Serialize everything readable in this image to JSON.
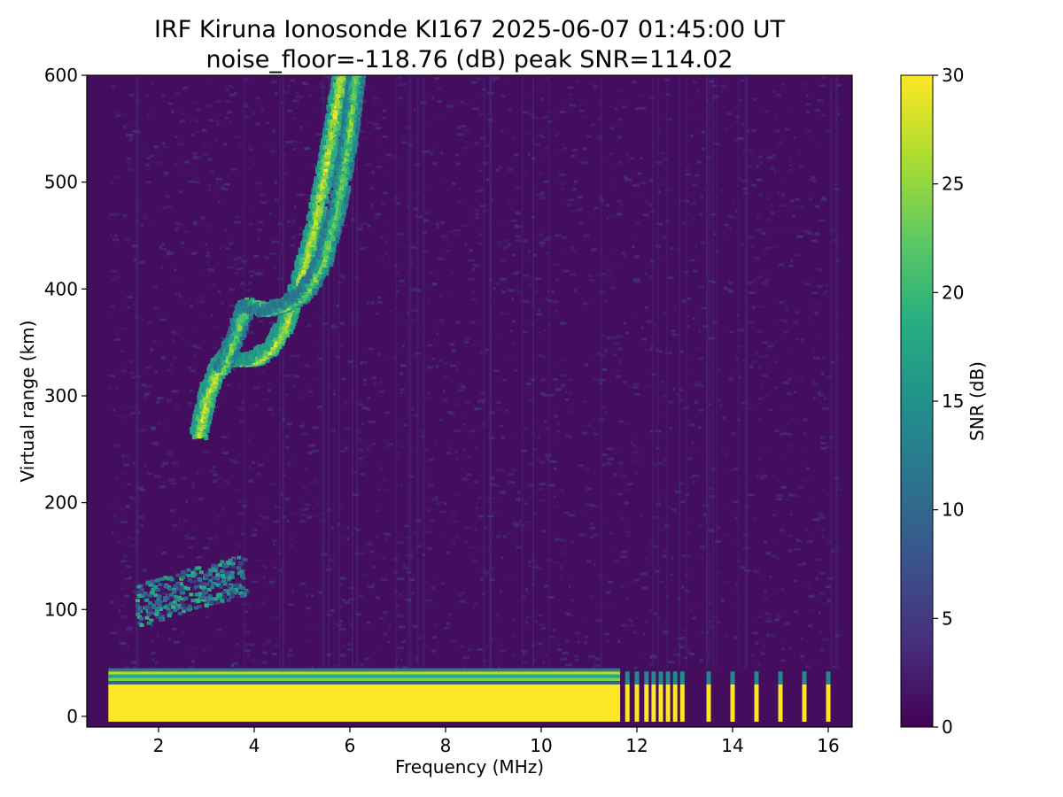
{
  "figure": {
    "title_line1": "IRF Kiruna Ionosonde KI167 2025-06-07 01:45:00  UT",
    "title_line2": "noise_floor=-118.76 (dB) peak SNR=114.02"
  },
  "chart_data": {
    "type": "heatmap",
    "title": "IRF Kiruna Ionosonde KI167 2025-06-07 01:45:00  UT",
    "subtitle": "noise_floor=-118.76 (dB) peak SNR=114.02",
    "xlabel": "Frequency (MHz)",
    "ylabel": "Virtual range (km)",
    "xlim": [
      0.5,
      16.5
    ],
    "ylim": [
      -10,
      600
    ],
    "xticks": [
      2,
      4,
      6,
      8,
      10,
      12,
      14,
      16
    ],
    "yticks": [
      0,
      100,
      200,
      300,
      400,
      500,
      600
    ],
    "colorbar": {
      "label": "SNR (dB)",
      "range": [
        0,
        30
      ],
      "ticks": [
        0,
        5,
        10,
        15,
        20,
        25,
        30
      ],
      "colormap": "viridis",
      "colors": [
        "#440154",
        "#472d7b",
        "#3b528b",
        "#2c728e",
        "#21918c",
        "#28ae80",
        "#5ec962",
        "#addc30",
        "#fde725"
      ]
    },
    "data_frequency_range_mhz": [
      0.95,
      16.2
    ],
    "noise_snr_db": 1,
    "features": [
      {
        "name": "ground-clutter band",
        "freq_mhz": [
          0.95,
          11.65
        ],
        "range_km": [
          -5,
          45
        ],
        "snr_db": 30
      },
      {
        "name": "pulsed frequencies above 11.7 MHz",
        "freq_mhz": [
          11.8,
          12.0,
          12.2,
          12.35,
          12.5,
          12.65,
          12.8,
          12.95,
          13.5,
          14.0,
          14.5,
          15.0,
          15.5,
          16.0
        ],
        "range_km": [
          -5,
          30
        ],
        "snr_db": 30
      },
      {
        "name": "E-region echo",
        "freq_mhz": [
          1.5,
          3.8
        ],
        "range_km": [
          95,
          170
        ],
        "snr_db": 16
      },
      {
        "name": "F-region trace O",
        "points": [
          [
            2.8,
            260
          ],
          [
            3.0,
            300
          ],
          [
            3.3,
            330
          ],
          [
            3.7,
            328
          ],
          [
            4.0,
            330
          ],
          [
            4.3,
            340
          ],
          [
            4.6,
            360
          ],
          [
            4.9,
            400
          ],
          [
            5.2,
            450
          ],
          [
            5.5,
            520
          ],
          [
            5.8,
            600
          ]
        ],
        "snr_db": 26
      },
      {
        "name": "F-region trace X",
        "points": [
          [
            3.3,
            320
          ],
          [
            3.8,
            380
          ],
          [
            4.2,
            375
          ],
          [
            4.6,
            380
          ],
          [
            5.0,
            390
          ],
          [
            5.4,
            420
          ],
          [
            5.7,
            470
          ],
          [
            5.95,
            540
          ],
          [
            6.1,
            600
          ]
        ],
        "snr_db": 22
      }
    ]
  }
}
